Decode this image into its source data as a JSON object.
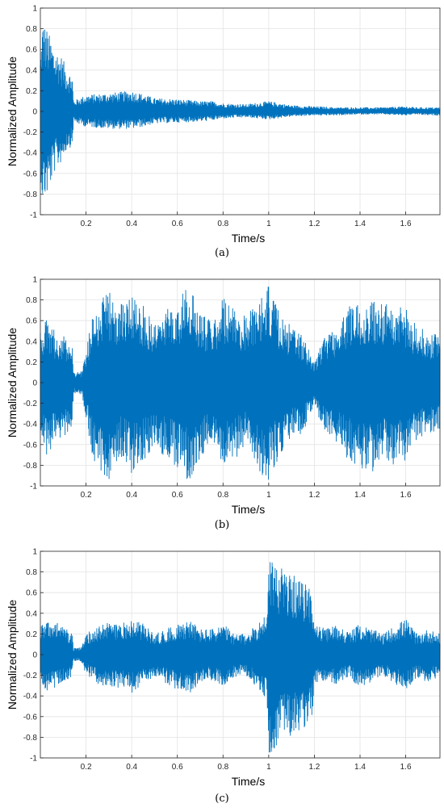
{
  "colors": {
    "signal": "#0072BD",
    "grid": "#e4e4e4",
    "axis": "#262626"
  },
  "chart_data": [
    {
      "type": "line",
      "caption": "(a)",
      "xlabel": "Time/s",
      "ylabel": "Normalized Amplitude",
      "xlim": [
        0,
        1.75
      ],
      "ylim": [
        -1,
        1
      ],
      "xticks": [
        0.2,
        0.4,
        0.6,
        0.8,
        1,
        1.2,
        1.4,
        1.6
      ],
      "yticks": [
        -1,
        -0.8,
        -0.6,
        -0.4,
        -0.2,
        0,
        0.2,
        0.4,
        0.6,
        0.8,
        1
      ],
      "grid": true,
      "envelope": {
        "x": [
          0,
          0.01,
          0.03,
          0.06,
          0.09,
          0.12,
          0.14,
          0.145,
          0.16,
          0.2,
          0.3,
          0.4,
          0.45,
          0.5,
          0.6,
          0.7,
          0.75,
          0.8,
          0.9,
          1.0,
          1.1,
          1.2,
          1.3,
          1.4,
          1.5,
          1.6,
          1.65,
          1.7,
          1.75
        ],
        "upper": [
          0.55,
          0.9,
          0.8,
          0.62,
          0.55,
          0.4,
          0.35,
          0.1,
          0.12,
          0.16,
          0.18,
          0.2,
          0.17,
          0.13,
          0.12,
          0.1,
          0.1,
          0.08,
          0.07,
          0.1,
          0.06,
          0.05,
          0.04,
          0.04,
          0.04,
          0.05,
          0.04,
          0.04,
          0.04
        ],
        "lower": [
          -0.6,
          -0.88,
          -0.82,
          -0.6,
          -0.5,
          -0.35,
          -0.35,
          -0.1,
          -0.12,
          -0.15,
          -0.17,
          -0.17,
          -0.15,
          -0.12,
          -0.11,
          -0.1,
          -0.09,
          -0.07,
          -0.06,
          -0.08,
          -0.05,
          -0.04,
          -0.04,
          -0.03,
          -0.03,
          -0.04,
          -0.03,
          -0.04,
          -0.04
        ]
      }
    },
    {
      "type": "line",
      "caption": "(b)",
      "xlabel": "Time/s",
      "ylabel": "Normalized Amplitude",
      "xlim": [
        0,
        1.75
      ],
      "ylim": [
        -1,
        1
      ],
      "xticks": [
        0.2,
        0.4,
        0.6,
        0.8,
        1,
        1.2,
        1.4,
        1.6
      ],
      "yticks": [
        -1,
        -0.8,
        -0.6,
        -0.4,
        -0.2,
        0,
        0.2,
        0.4,
        0.6,
        0.8,
        1
      ],
      "grid": true,
      "envelope": {
        "x": [
          0,
          0.02,
          0.05,
          0.08,
          0.12,
          0.14,
          0.145,
          0.18,
          0.2,
          0.23,
          0.3,
          0.35,
          0.4,
          0.45,
          0.5,
          0.55,
          0.6,
          0.65,
          0.7,
          0.75,
          0.8,
          0.85,
          0.9,
          0.95,
          1.0,
          1.05,
          1.1,
          1.15,
          1.2,
          1.25,
          1.3,
          1.35,
          1.4,
          1.45,
          1.5,
          1.55,
          1.6,
          1.65,
          1.7,
          1.75
        ],
        "upper": [
          0.5,
          0.62,
          0.55,
          0.45,
          0.45,
          0.4,
          0.1,
          0.12,
          0.3,
          0.7,
          0.9,
          0.75,
          0.95,
          0.75,
          0.6,
          0.7,
          0.8,
          0.95,
          0.7,
          0.6,
          0.85,
          0.7,
          0.65,
          0.85,
          0.95,
          0.65,
          0.55,
          0.45,
          0.2,
          0.5,
          0.55,
          0.75,
          0.8,
          0.85,
          0.75,
          0.8,
          0.72,
          0.55,
          0.5,
          0.45
        ],
        "lower": [
          -0.5,
          -0.75,
          -0.65,
          -0.55,
          -0.5,
          -0.4,
          -0.1,
          -0.12,
          -0.35,
          -0.75,
          -0.95,
          -0.7,
          -0.88,
          -0.75,
          -0.65,
          -0.72,
          -0.85,
          -0.95,
          -0.75,
          -0.6,
          -0.85,
          -0.75,
          -0.6,
          -0.85,
          -0.95,
          -0.7,
          -0.55,
          -0.5,
          -0.2,
          -0.55,
          -0.6,
          -0.75,
          -0.85,
          -0.88,
          -0.75,
          -0.8,
          -0.75,
          -0.55,
          -0.5,
          -0.45
        ]
      }
    },
    {
      "type": "line",
      "caption": "(c)",
      "xlabel": "Time/s",
      "ylabel": "Normalized Amplitude",
      "xlim": [
        0,
        1.75
      ],
      "ylim": [
        -1,
        1
      ],
      "xticks": [
        0.2,
        0.4,
        0.6,
        0.8,
        1,
        1.2,
        1.4,
        1.6
      ],
      "yticks": [
        -1,
        -0.8,
        -0.6,
        -0.4,
        -0.2,
        0,
        0.2,
        0.4,
        0.6,
        0.8,
        1
      ],
      "grid": true,
      "envelope": {
        "x": [
          0,
          0.03,
          0.08,
          0.12,
          0.14,
          0.145,
          0.18,
          0.2,
          0.25,
          0.3,
          0.35,
          0.4,
          0.45,
          0.5,
          0.55,
          0.6,
          0.65,
          0.7,
          0.75,
          0.8,
          0.85,
          0.9,
          0.95,
          0.99,
          1.0,
          1.02,
          1.05,
          1.1,
          1.15,
          1.19,
          1.2,
          1.25,
          1.3,
          1.35,
          1.4,
          1.45,
          1.5,
          1.55,
          1.6,
          1.65,
          1.7,
          1.75
        ],
        "upper": [
          0.3,
          0.35,
          0.3,
          0.25,
          0.2,
          0.06,
          0.08,
          0.2,
          0.28,
          0.32,
          0.3,
          0.35,
          0.3,
          0.2,
          0.25,
          0.3,
          0.35,
          0.25,
          0.25,
          0.3,
          0.2,
          0.2,
          0.3,
          0.4,
          0.98,
          0.95,
          0.85,
          0.78,
          0.7,
          0.65,
          0.3,
          0.25,
          0.3,
          0.22,
          0.3,
          0.25,
          0.2,
          0.28,
          0.35,
          0.2,
          0.25,
          0.2
        ],
        "lower": [
          -0.3,
          -0.38,
          -0.3,
          -0.25,
          -0.2,
          -0.06,
          -0.08,
          -0.2,
          -0.28,
          -0.32,
          -0.32,
          -0.38,
          -0.3,
          -0.22,
          -0.28,
          -0.35,
          -0.38,
          -0.28,
          -0.25,
          -0.3,
          -0.22,
          -0.2,
          -0.32,
          -0.45,
          -0.98,
          -0.92,
          -0.85,
          -0.78,
          -0.72,
          -0.65,
          -0.3,
          -0.25,
          -0.3,
          -0.22,
          -0.32,
          -0.28,
          -0.2,
          -0.28,
          -0.35,
          -0.22,
          -0.28,
          -0.2
        ]
      }
    }
  ]
}
